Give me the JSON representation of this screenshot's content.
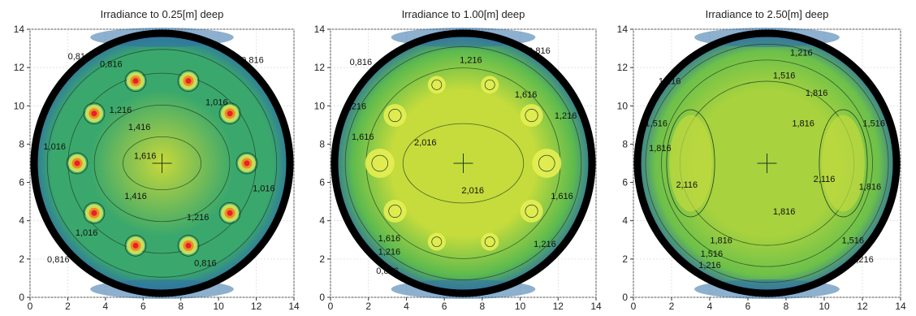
{
  "chart_data": [
    {
      "type": "heatmap",
      "title": "Irradiance to 0.25[m] deep",
      "xlabel": "",
      "ylabel": "",
      "xlim": [
        0,
        14
      ],
      "ylim": [
        0,
        14
      ],
      "xticks": [
        0,
        2,
        4,
        6,
        8,
        10,
        12,
        14
      ],
      "yticks": [
        0,
        2,
        4,
        6,
        8,
        10,
        12,
        14
      ],
      "grid": true,
      "center_marker": [
        7,
        7
      ],
      "colors": {
        "low": "#2f6fa8",
        "mid": "#3aa86c",
        "high": "#c7d83a",
        "hot": "#e8202a"
      },
      "sources": [
        [
          5.6,
          11.3
        ],
        [
          8.4,
          11.3
        ],
        [
          3.4,
          9.6
        ],
        [
          10.6,
          9.6
        ],
        [
          2.5,
          7.0
        ],
        [
          11.5,
          7.0
        ],
        [
          3.4,
          4.4
        ],
        [
          10.6,
          4.4
        ],
        [
          5.6,
          2.7
        ],
        [
          8.4,
          2.7
        ]
      ],
      "contours": [
        {
          "label": "0,816",
          "points": [
            [
              2.6,
              12.6
            ]
          ]
        },
        {
          "label": "0,816",
          "points": [
            [
              4.3,
              12.2
            ]
          ]
        },
        {
          "label": "0,816",
          "points": [
            [
              11.8,
              12.4
            ]
          ]
        },
        {
          "label": "1,016",
          "points": [
            [
              9.9,
              10.2
            ]
          ]
        },
        {
          "label": "1,216",
          "points": [
            [
              4.8,
              9.8
            ]
          ]
        },
        {
          "label": "1,416",
          "points": [
            [
              5.8,
              8.9
            ]
          ]
        },
        {
          "label": "1,016",
          "points": [
            [
              1.3,
              7.9
            ]
          ]
        },
        {
          "label": "1,616",
          "points": [
            [
              6.1,
              7.4
            ]
          ]
        },
        {
          "label": "1,416",
          "points": [
            [
              5.6,
              5.3
            ]
          ]
        },
        {
          "label": "1,016",
          "points": [
            [
              12.4,
              5.7
            ]
          ]
        },
        {
          "label": "1,216",
          "points": [
            [
              8.9,
              4.2
            ]
          ]
        },
        {
          "label": "1,016",
          "points": [
            [
              3.0,
              3.4
            ]
          ]
        },
        {
          "label": "0,816",
          "points": [
            [
              9.3,
              1.8
            ]
          ]
        },
        {
          "label": "0,816",
          "points": [
            [
              1.5,
              2.0
            ]
          ]
        }
      ]
    },
    {
      "type": "heatmap",
      "title": "Irradiance to 1.00[m] deep",
      "xlabel": "",
      "ylabel": "",
      "xlim": [
        0,
        14
      ],
      "ylim": [
        0,
        14
      ],
      "xticks": [
        0,
        2,
        4,
        6,
        8,
        10,
        12,
        14
      ],
      "yticks": [
        0,
        2,
        4,
        6,
        8,
        10,
        12,
        14
      ],
      "grid": true,
      "center_marker": [
        7,
        7
      ],
      "colors": {
        "low": "#2f6fa8",
        "mid": "#5cba4e",
        "high": "#c5dc3c",
        "hot": "#e6ee52"
      },
      "sources": [
        [
          5.6,
          11.1
        ],
        [
          8.4,
          11.1
        ],
        [
          3.4,
          9.5
        ],
        [
          10.6,
          9.5
        ],
        [
          2.6,
          7.0
        ],
        [
          11.4,
          7.0
        ],
        [
          3.4,
          4.5
        ],
        [
          10.6,
          4.5
        ],
        [
          5.6,
          2.9
        ],
        [
          8.4,
          2.9
        ]
      ],
      "contours": [
        {
          "label": "1,216",
          "points": [
            [
              7.4,
              12.4
            ]
          ]
        },
        {
          "label": "0,816",
          "points": [
            [
              11.0,
              12.9
            ]
          ]
        },
        {
          "label": "0,816",
          "points": [
            [
              1.6,
              12.3
            ]
          ]
        },
        {
          "label": "1,216",
          "points": [
            [
              1.3,
              10.0
            ]
          ]
        },
        {
          "label": "1,616",
          "points": [
            [
              10.3,
              10.6
            ]
          ]
        },
        {
          "label": "1,216",
          "points": [
            [
              12.4,
              9.5
            ]
          ]
        },
        {
          "label": "1,616",
          "points": [
            [
              1.7,
              8.4
            ]
          ]
        },
        {
          "label": "2,016",
          "points": [
            [
              5.0,
              8.1
            ]
          ]
        },
        {
          "label": "2,016",
          "points": [
            [
              7.5,
              5.6
            ]
          ]
        },
        {
          "label": "1,616",
          "points": [
            [
              12.2,
              5.3
            ]
          ]
        },
        {
          "label": "1,616",
          "points": [
            [
              3.1,
              3.1
            ]
          ]
        },
        {
          "label": "1,216",
          "points": [
            [
              3.1,
              2.4
            ]
          ]
        },
        {
          "label": "1,216",
          "points": [
            [
              11.3,
              2.8
            ]
          ]
        },
        {
          "label": "0,816",
          "points": [
            [
              3.0,
              1.4
            ]
          ]
        }
      ]
    },
    {
      "type": "heatmap",
      "title": "Irradiance to 2.50[m] deep",
      "xlabel": "",
      "ylabel": "",
      "xlim": [
        0,
        14
      ],
      "ylim": [
        0,
        14
      ],
      "xticks": [
        0,
        2,
        4,
        6,
        8,
        10,
        12,
        14
      ],
      "yticks": [
        0,
        2,
        4,
        6,
        8,
        10,
        12,
        14
      ],
      "grid": true,
      "center_marker": [
        7,
        7
      ],
      "colors": {
        "low": "#2f6fa8",
        "mid": "#6cc04a",
        "high": "#a8d23e",
        "hot": "#c0da40"
      },
      "sources": [],
      "contours": [
        {
          "label": "1,216",
          "points": [
            [
              8.8,
              12.8
            ]
          ]
        },
        {
          "label": "1,516",
          "points": [
            [
              7.9,
              11.6
            ]
          ]
        },
        {
          "label": "1,216",
          "points": [
            [
              1.9,
              11.3
            ]
          ]
        },
        {
          "label": "1,816",
          "points": [
            [
              9.6,
              10.7
            ]
          ]
        },
        {
          "label": "1,816",
          "points": [
            [
              8.9,
              9.1
            ]
          ]
        },
        {
          "label": "1,516",
          "points": [
            [
              1.2,
              9.1
            ]
          ]
        },
        {
          "label": "1,516",
          "points": [
            [
              12.6,
              9.1
            ]
          ]
        },
        {
          "label": "1,816",
          "points": [
            [
              1.4,
              7.8
            ]
          ]
        },
        {
          "label": "2,116",
          "points": [
            [
              10.0,
              6.2
            ]
          ]
        },
        {
          "label": "2,116",
          "points": [
            [
              2.8,
              5.9
            ]
          ]
        },
        {
          "label": "1,816",
          "points": [
            [
              12.4,
              5.8
            ]
          ]
        },
        {
          "label": "1,816",
          "points": [
            [
              7.9,
              4.5
            ]
          ]
        },
        {
          "label": "1,816",
          "points": [
            [
              4.6,
              3.0
            ]
          ]
        },
        {
          "label": "1,516",
          "points": [
            [
              11.5,
              3.0
            ]
          ]
        },
        {
          "label": "1,516",
          "points": [
            [
              4.1,
              2.3
            ]
          ]
        },
        {
          "label": "1,216",
          "points": [
            [
              4.0,
              1.7
            ]
          ]
        },
        {
          "label": "1,216",
          "points": [
            [
              12.0,
              2.0
            ]
          ]
        }
      ]
    }
  ]
}
